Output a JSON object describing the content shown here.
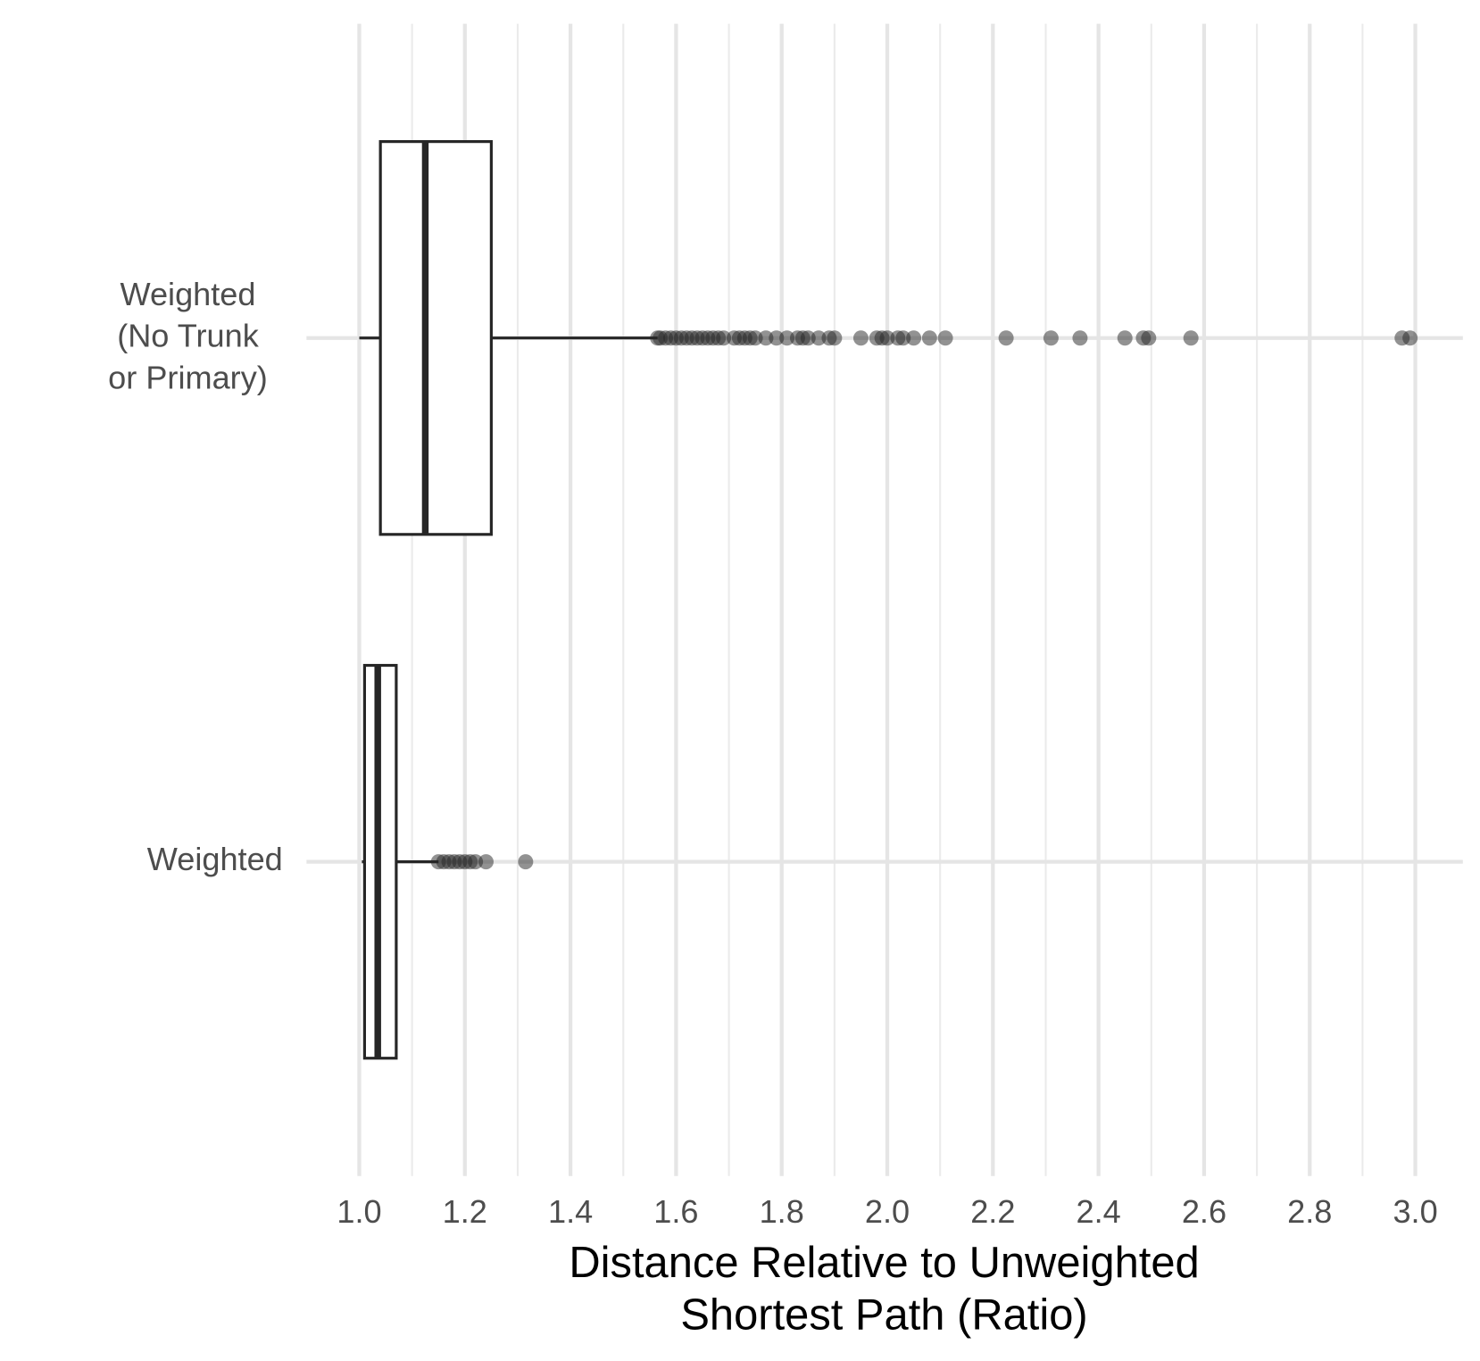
{
  "chart_data": {
    "type": "boxplot",
    "orientation": "horizontal",
    "x_label": "Distance Relative to Unweighted\nShortest Path (Ratio)",
    "categories": [
      "Weighted\n(No Trunk\nor Primary)",
      "Weighted"
    ],
    "boxes": [
      {
        "whisker_low": 1.0,
        "q1": 1.04,
        "median": 1.125,
        "q3": 1.25,
        "whisker_high": 1.565,
        "outliers": [
          1.565,
          1.57,
          1.58,
          1.59,
          1.6,
          1.61,
          1.62,
          1.63,
          1.64,
          1.65,
          1.66,
          1.67,
          1.68,
          1.69,
          1.71,
          1.72,
          1.73,
          1.74,
          1.75,
          1.77,
          1.79,
          1.81,
          1.83,
          1.84,
          1.85,
          1.87,
          1.89,
          1.9,
          1.95,
          1.98,
          1.99,
          2.0,
          2.02,
          2.03,
          2.05,
          2.08,
          2.11,
          2.225,
          2.31,
          2.365,
          2.45,
          2.485,
          2.495,
          2.575,
          2.975,
          2.99
        ]
      },
      {
        "whisker_low": 1.005,
        "q1": 1.01,
        "median": 1.035,
        "q3": 1.07,
        "whisker_high": 1.15,
        "outliers": [
          1.15,
          1.16,
          1.17,
          1.18,
          1.19,
          1.2,
          1.21,
          1.22,
          1.24,
          1.315
        ]
      }
    ],
    "xlim": [
      0.9,
      3.09
    ],
    "xticks": [
      {
        "value": 1,
        "label": "1.0"
      },
      1.2,
      1.4,
      1.6,
      1.8,
      {
        "value": 2,
        "label": "2.0"
      },
      2.2,
      2.4,
      2.6,
      2.8,
      {
        "value": 3,
        "label": "3.0"
      }
    ],
    "grid": true,
    "color": "#262626",
    "box_fill": "#ffffff"
  }
}
